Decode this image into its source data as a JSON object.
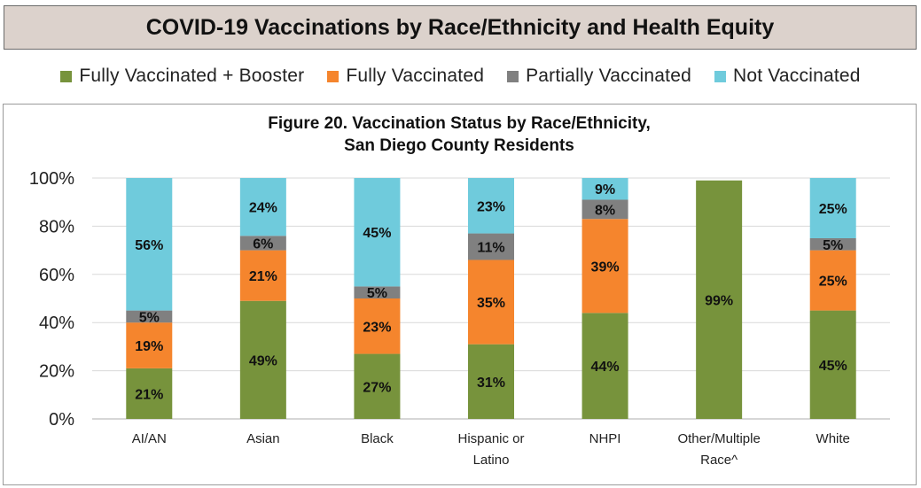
{
  "banner": {
    "title": "COVID-19 Vaccinations by Race/Ethnicity and Health Equity"
  },
  "legend": [
    {
      "label": "Fully Vaccinated + Booster",
      "color": "#77933c"
    },
    {
      "label": "Fully Vaccinated",
      "color": "#f5852d"
    },
    {
      "label": "Partially Vaccinated",
      "color": "#808080"
    },
    {
      "label": "Not Vaccinated",
      "color": "#6fcbdc"
    }
  ],
  "chart_data": {
    "type": "bar",
    "stacked": true,
    "title": [
      "Figure 20. Vaccination Status by Race/Ethnicity,",
      "San Diego County Residents"
    ],
    "categories": [
      [
        "AI/AN"
      ],
      [
        "Asian"
      ],
      [
        "Black"
      ],
      [
        "Hispanic or",
        "Latino"
      ],
      [
        "NHPI"
      ],
      [
        "Other/Multiple",
        "Race^"
      ],
      [
        "White"
      ]
    ],
    "series": [
      {
        "name": "Fully Vaccinated + Booster",
        "color": "#77933c",
        "values": [
          21,
          49,
          27,
          31,
          44,
          99,
          45
        ]
      },
      {
        "name": "Fully Vaccinated",
        "color": "#f5852d",
        "values": [
          19,
          21,
          23,
          35,
          39,
          0,
          25
        ]
      },
      {
        "name": "Partially Vaccinated",
        "color": "#808080",
        "values": [
          5,
          6,
          5,
          11,
          8,
          0,
          5
        ]
      },
      {
        "name": "Not Vaccinated",
        "color": "#6fcbdc",
        "values": [
          56,
          24,
          45,
          23,
          9,
          0,
          25
        ]
      }
    ],
    "data_labels": [
      [
        "21%",
        "49%",
        "27%",
        "31%",
        "44%",
        "99%",
        "45%"
      ],
      [
        "19%",
        "21%",
        "23%",
        "35%",
        "39%",
        "",
        "25%"
      ],
      [
        "5%",
        "6%",
        "5%",
        "11%",
        "8%",
        "",
        "5%"
      ],
      [
        "56%",
        "24%",
        "45%",
        "23%",
        "9%",
        "",
        "25%"
      ]
    ],
    "yticks": [
      "0%",
      "20%",
      "40%",
      "60%",
      "80%",
      "100%"
    ],
    "ytick_values": [
      0,
      20,
      40,
      60,
      80,
      100
    ],
    "ylim": [
      0,
      100
    ],
    "xlabel": "",
    "ylabel": "",
    "grid": true,
    "gridline_color": "#d9d9d9"
  }
}
